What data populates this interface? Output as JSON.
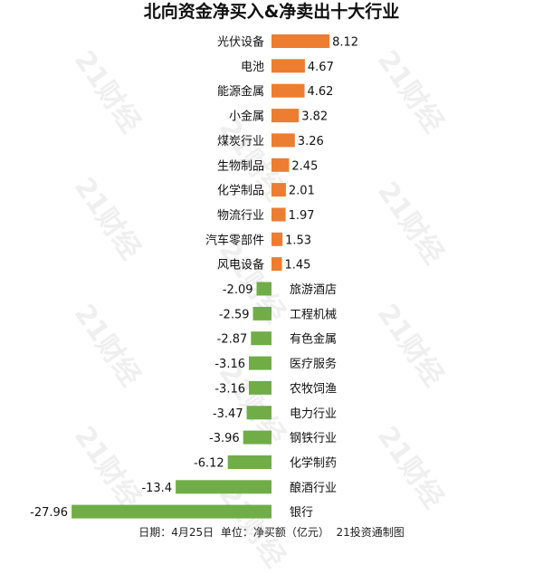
{
  "chart_data": {
    "type": "bar",
    "orientation": "horizontal",
    "title": "北向资金净买入&净卖出十大行业",
    "categories": [
      "光伏设备",
      "电池",
      "能源金属",
      "小金属",
      "煤炭行业",
      "生物制品",
      "化学制品",
      "物流行业",
      "汽车零部件",
      "风电设备",
      "旅游酒店",
      "工程机械",
      "有色金属",
      "医疗服务",
      "农牧饲渔",
      "电力行业",
      "钢铁行业",
      "化学制药",
      "酿酒行业",
      "银行"
    ],
    "values": [
      8.12,
      4.67,
      4.62,
      3.82,
      3.26,
      2.45,
      2.01,
      1.97,
      1.53,
      1.45,
      -2.09,
      -2.59,
      -2.87,
      -3.16,
      -3.16,
      -3.47,
      -3.96,
      -6.12,
      -13.4,
      -27.96
    ],
    "value_labels": [
      "8.12",
      "4.67",
      "4.62",
      "3.82",
      "3.26",
      "2.45",
      "2.01",
      "1.97",
      "1.53",
      "1.45",
      "-2.09",
      "-2.59",
      "-2.87",
      "-3.16",
      "-3.16",
      "-3.47",
      "-3.96",
      "-6.12",
      "-13.4",
      "-27.96"
    ],
    "colors": {
      "positive": "#ED7D31",
      "negative": "#70AD47"
    },
    "xlim": [
      -27.96,
      8.12
    ],
    "grid": false,
    "legend": "none",
    "footer": "日期：4月25日  单位：净买额（亿元）  21投资通制图",
    "watermark": "21财经"
  }
}
